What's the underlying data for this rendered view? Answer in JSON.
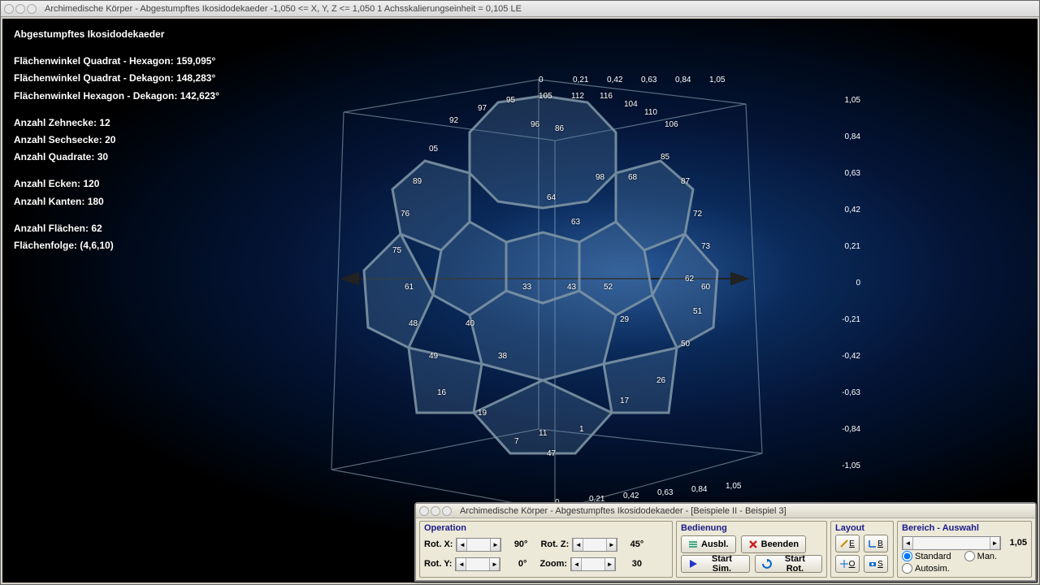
{
  "window": {
    "title": "Archimedische Körper - Abgestumpftes Ikosidodekaeder   -1,050 <= X, Y, Z <= 1,050    1 Achsskalierungseinheit = 0,105 LE"
  },
  "info": {
    "heading": "Abgestumpftes Ikosidodekaeder",
    "angle_sq_hex_label": "Flächenwinkel Quadrat - Hexagon:",
    "angle_sq_hex_val": "159,095°",
    "angle_sq_dec_label": "Flächenwinkel Quadrat - Dekagon:",
    "angle_sq_dec_val": "148,283°",
    "angle_hex_dec_label": "Flächenwinkel Hexagon - Dekagon:",
    "angle_hex_dec_val": "142,623°",
    "decagons_label": "Anzahl Zehnecke:",
    "decagons_val": "12",
    "hexagons_label": "Anzahl Sechsecke:",
    "hexagons_val": "20",
    "squares_label": "Anzahl Quadrate:",
    "squares_val": "30",
    "vertices_label": "Anzahl Ecken:",
    "vertices_val": "120",
    "edges_label": "Anzahl Kanten:",
    "edges_val": "180",
    "faces_label": "Anzahl Flächen:",
    "faces_val": "62",
    "seq_label": "Flächenfolge:",
    "seq_val": "(4,6,10)"
  },
  "scene": {
    "z_ticks": [
      "1,05",
      "0,84",
      "0,63",
      "0,42",
      "0,21",
      "0",
      "-0,21",
      "-0,42",
      "-0,63",
      "-0,84",
      "-1,05"
    ],
    "top_ticks": [
      "0",
      "0,21",
      "0,42",
      "0,63",
      "0,84",
      "1,05"
    ],
    "bottom_ticks": [
      "0",
      "0,21",
      "0,42",
      "0,63",
      "0,84",
      "1,05"
    ],
    "vertex_samples": [
      "105",
      "112",
      "116",
      "104",
      "110",
      "106",
      "95",
      "97",
      "92",
      "96",
      "86",
      "05",
      "89",
      "85",
      "87",
      "98",
      "68",
      "72",
      "73",
      "76",
      "75",
      "64",
      "63",
      "62",
      "60",
      "61",
      "52",
      "51",
      "50",
      "48",
      "49",
      "33",
      "43",
      "29",
      "40",
      "38",
      "26",
      "16",
      "17",
      "19",
      "11",
      "1",
      "7",
      "47"
    ],
    "edge_color": "#8ea5b4",
    "face_color": "#3d6d9a",
    "face_color_light": "#6d96ba",
    "bg_gradient_inner": "#2a5a9a",
    "bg_gradient_outer": "#000000"
  },
  "control_window": {
    "title": "Archimedische Körper - Abgestumpftes Ikosidodekaeder - [Beispiele II - Beispiel 3]"
  },
  "operation": {
    "title": "Operation",
    "rotx_label": "Rot. X:",
    "rotx_val": "90°",
    "roty_label": "Rot. Y:",
    "roty_val": "0°",
    "rotz_label": "Rot. Z:",
    "rotz_val": "45°",
    "zoom_label": "Zoom:",
    "zoom_val": "30"
  },
  "bedienung": {
    "title": "Bedienung",
    "ausbl": "Ausbl.",
    "beenden": "Beenden",
    "start_sim": "Start Sim.",
    "start_rot": "Start Rot."
  },
  "layout": {
    "title": "Layout",
    "btn_e": "E",
    "btn_b": "B",
    "btn_o": "O",
    "btn_s": "S"
  },
  "bereich": {
    "title": "Bereich - Auswahl",
    "val": "1,05",
    "standard": "Standard",
    "man": "Man.",
    "autosim": "Autosim."
  }
}
